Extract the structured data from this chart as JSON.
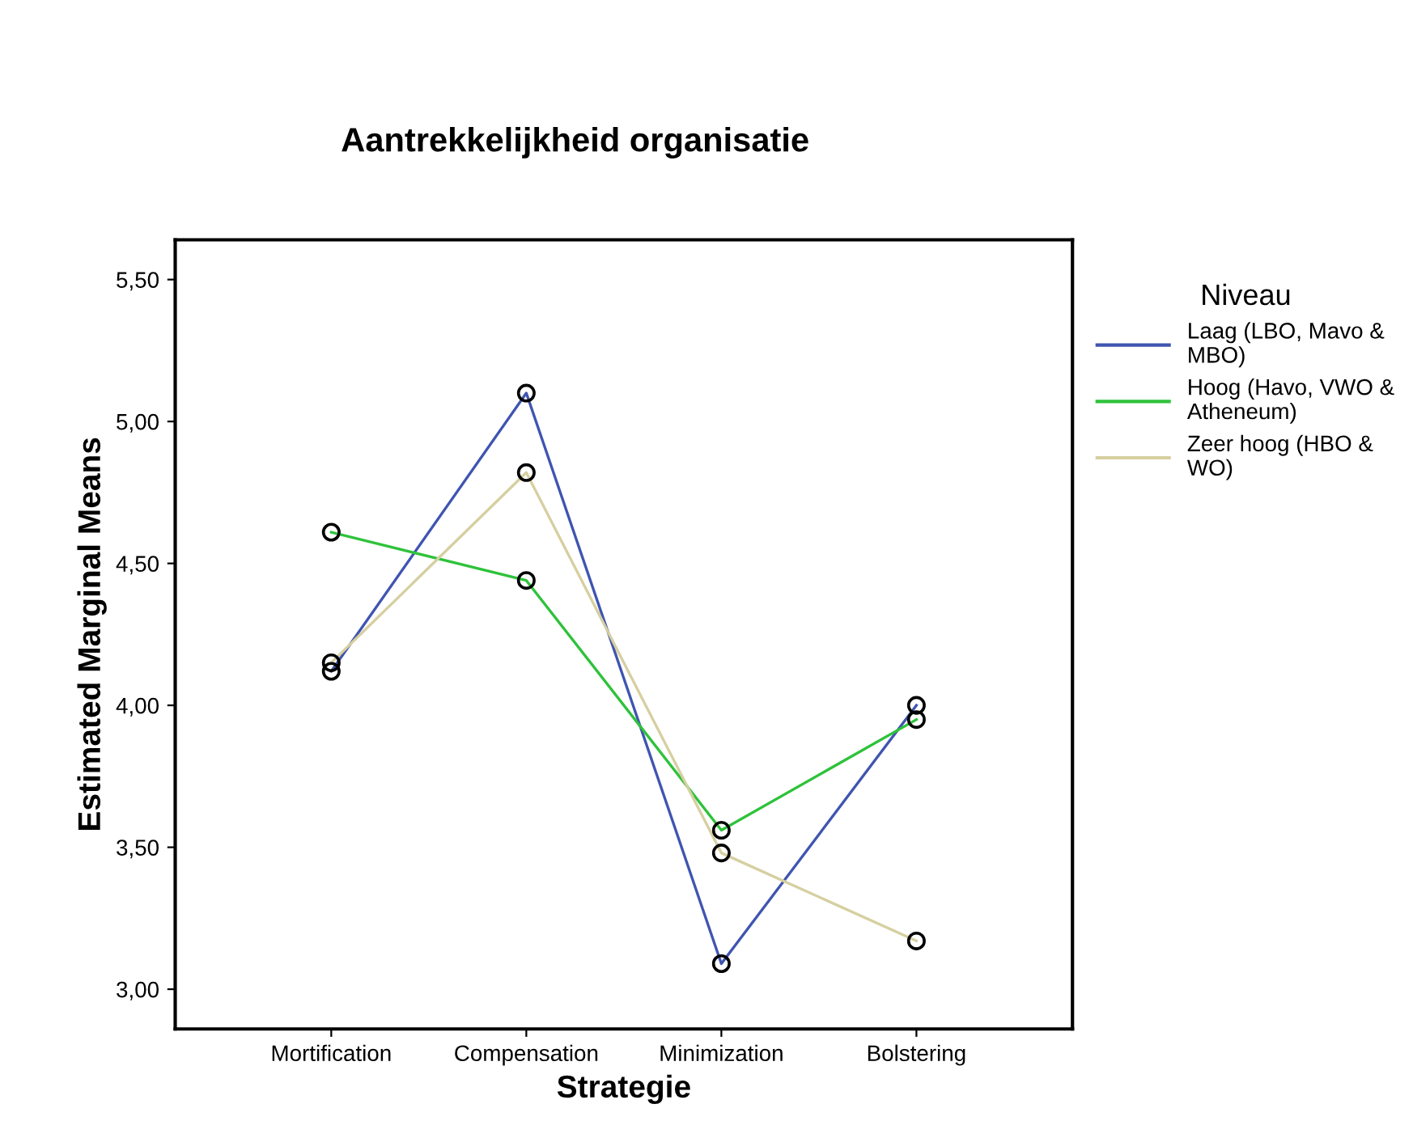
{
  "chart_data": {
    "type": "line",
    "title": "Aantrekkelijkheid organisatie",
    "xlabel": "Strategie",
    "ylabel": "Estimated Marginal Means",
    "legend_title": "Niveau",
    "categories": [
      "Mortification",
      "Compensation",
      "Minimization",
      "Bolstering"
    ],
    "series": [
      {
        "name": "Laag (LBO, Mavo & MBO)",
        "color": "#3f55b0",
        "values": [
          4.12,
          5.1,
          3.09,
          4.0
        ]
      },
      {
        "name": "Hoog (Havo, VWO & Atheneum)",
        "color": "#2ec23a",
        "values": [
          4.61,
          4.44,
          3.56,
          3.95
        ]
      },
      {
        "name": "Zeer hoog (HBO & WO)",
        "color": "#d6cfa0",
        "values": [
          4.15,
          4.82,
          3.48,
          3.17
        ]
      }
    ],
    "ylim": [
      2.86,
      5.64
    ],
    "yticks": [
      {
        "value": 3.0,
        "label": "3,00"
      },
      {
        "value": 3.5,
        "label": "3,50"
      },
      {
        "value": 4.0,
        "label": "4,00"
      },
      {
        "value": 4.5,
        "label": "4,50"
      },
      {
        "value": 5.0,
        "label": "5,00"
      },
      {
        "value": 5.5,
        "label": "5,50"
      }
    ],
    "marker": "circle",
    "line_style": "solid",
    "grid": false,
    "legend": "right"
  }
}
